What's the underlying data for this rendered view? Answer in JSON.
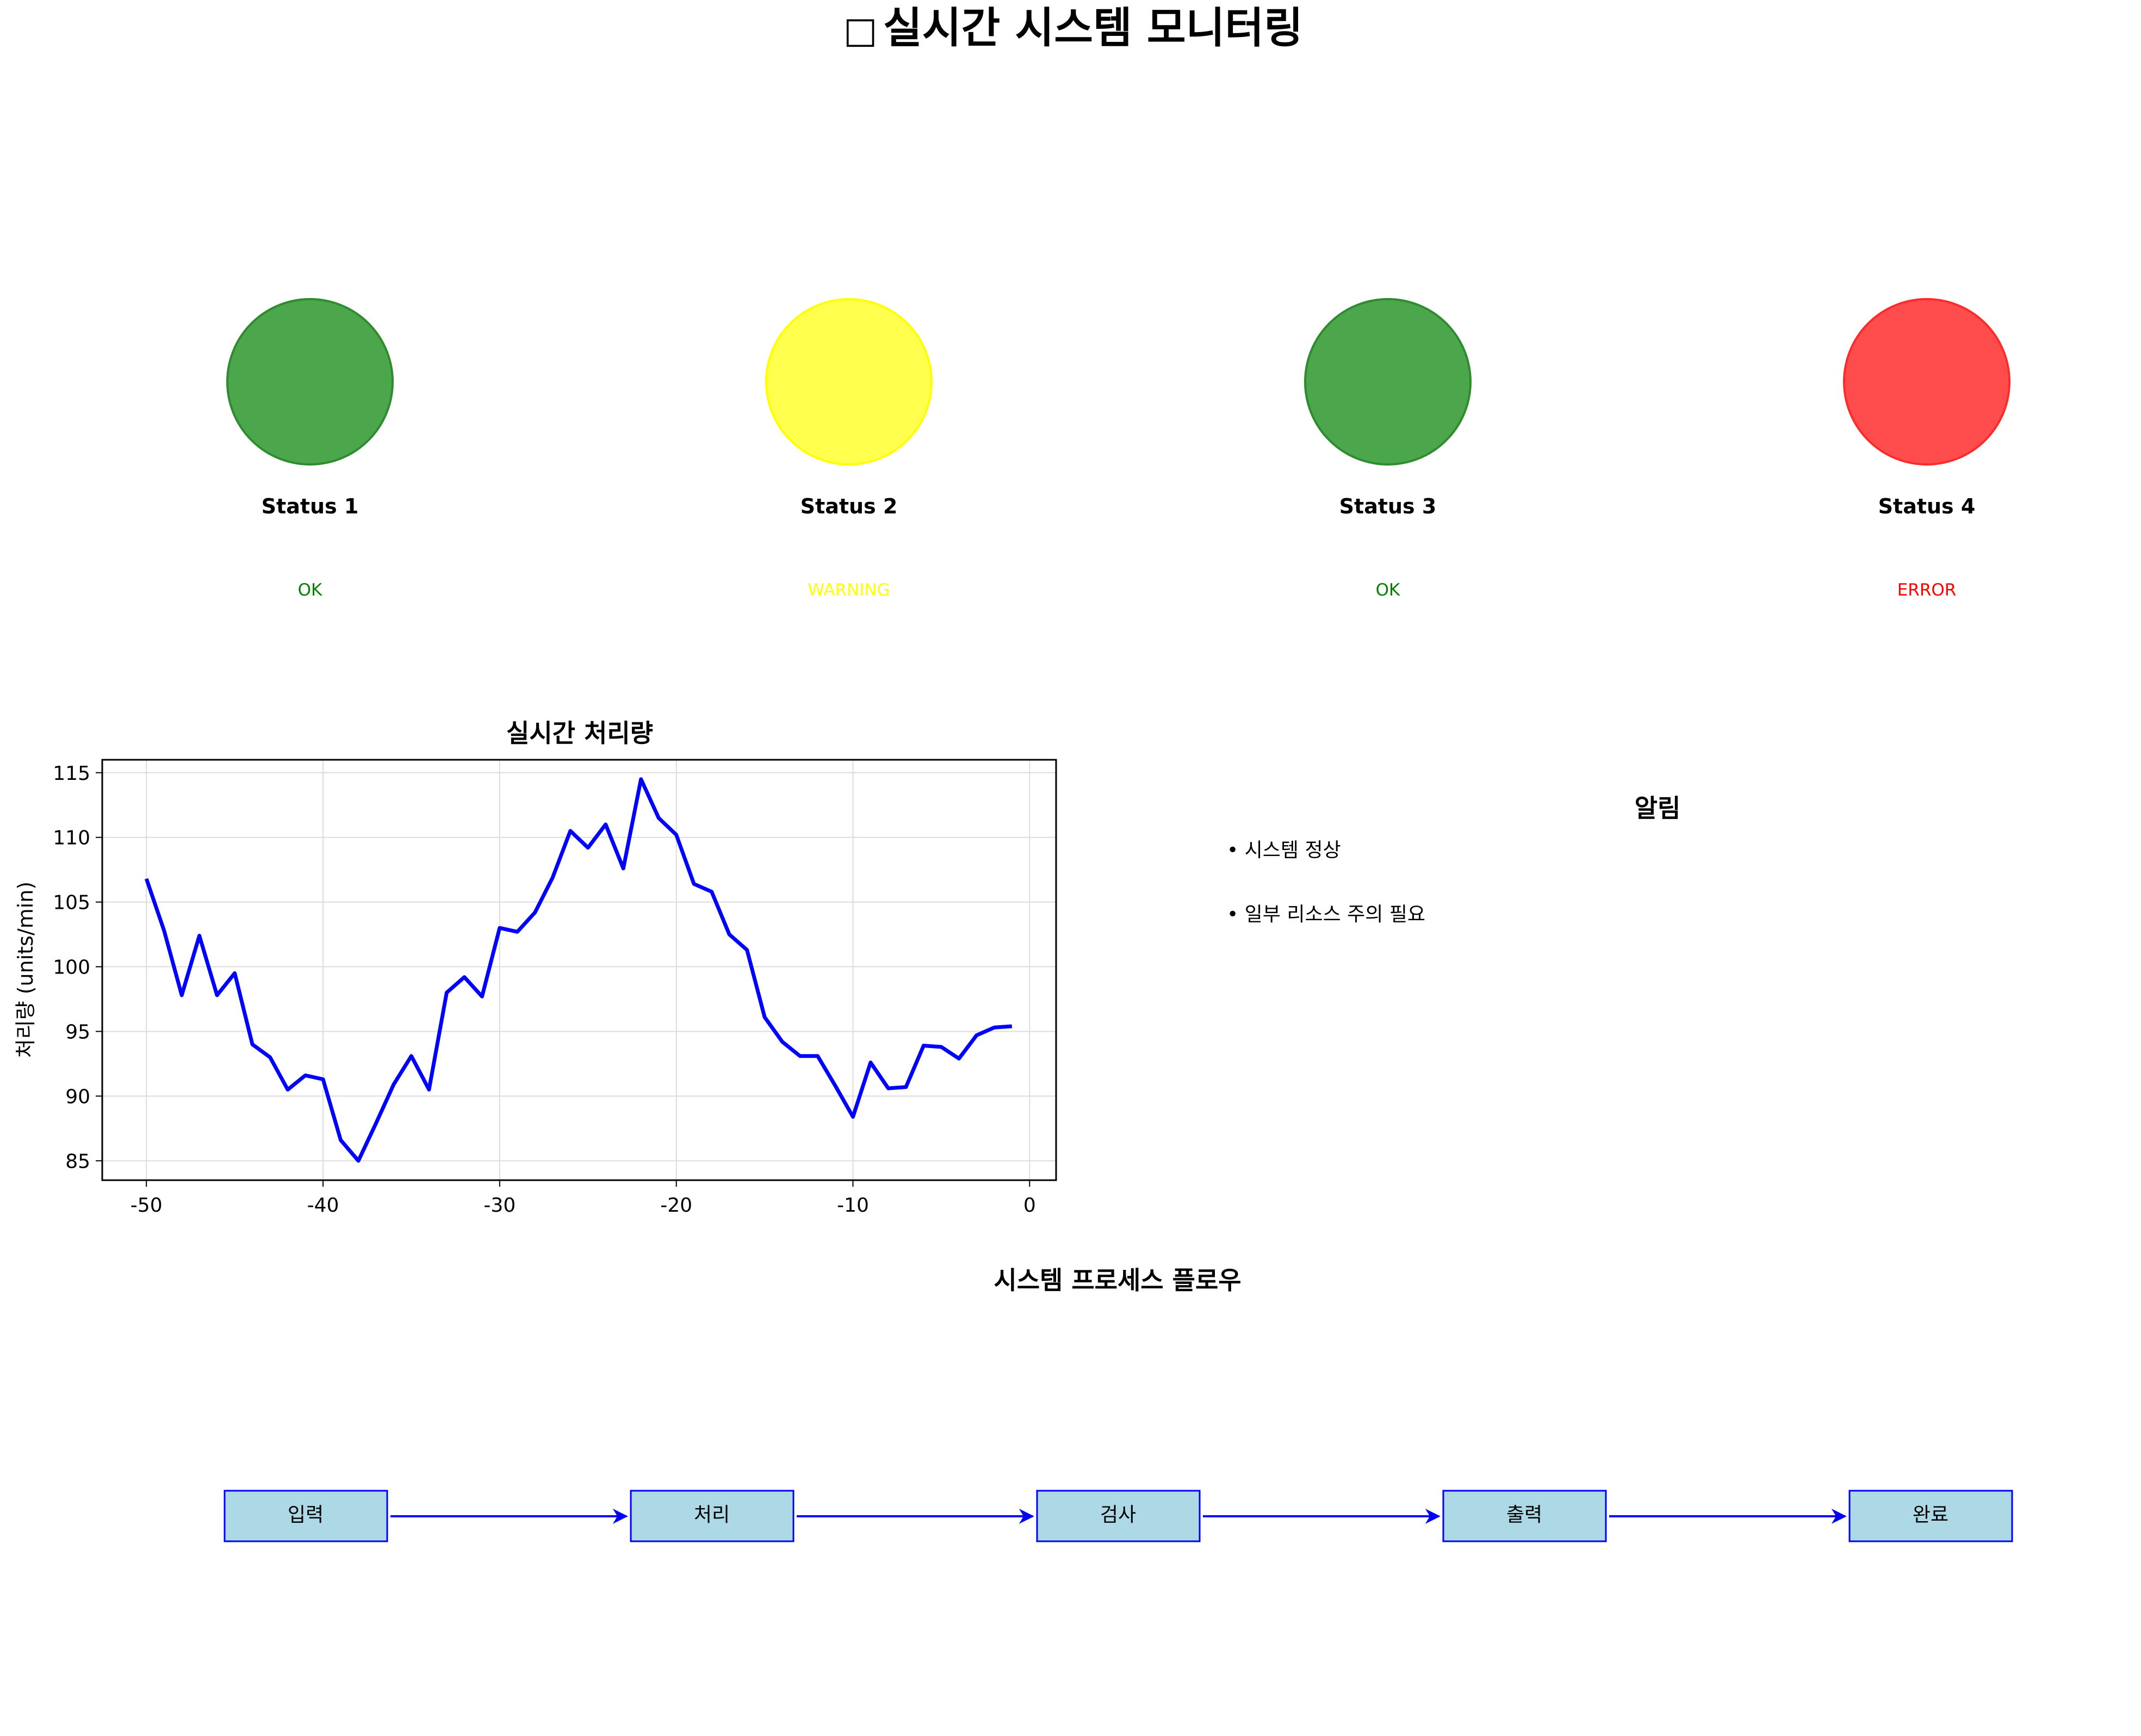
{
  "page": {
    "title_icon": "□",
    "title": "실시간 시스템 모니터링"
  },
  "status_panel": {
    "items": [
      {
        "label": "Status 1",
        "state": "OK",
        "color": "#4ca64c",
        "text_color": "#008000"
      },
      {
        "label": "Status 2",
        "state": "WARNING",
        "color": "#ffff4d",
        "text_color": "#ffff00"
      },
      {
        "label": "Status 3",
        "state": "OK",
        "color": "#4ca64c",
        "text_color": "#008000"
      },
      {
        "label": "Status 4",
        "state": "ERROR",
        "color": "#ff4d4d",
        "text_color": "#ff0000"
      }
    ]
  },
  "chart_data": {
    "type": "line",
    "title": "실시간 처리량",
    "xlabel": "",
    "ylabel": "처리량 (units/min)",
    "xlim": [
      -52.5,
      1.5
    ],
    "ylim": [
      83.5,
      116
    ],
    "xticks": [
      -50,
      -40,
      -30,
      -20,
      -10,
      0
    ],
    "yticks": [
      85,
      90,
      95,
      100,
      105,
      110,
      115
    ],
    "grid": true,
    "line_color": "#0000ff",
    "series": [
      {
        "x": [
          -50,
          -49,
          -48,
          -47,
          -46,
          -45,
          -44,
          -43,
          -42,
          -41,
          -40,
          -39,
          -38,
          -37,
          -36,
          -35,
          -34,
          -33,
          -32,
          -31,
          -30,
          -29,
          -28,
          -27,
          -26,
          -25,
          -24,
          -23,
          -22,
          -21,
          -20,
          -19,
          -18,
          -17,
          -16,
          -15,
          -14,
          -13,
          -12,
          -11,
          -10,
          -9,
          -8,
          -7,
          -6,
          -5,
          -4,
          -3,
          -2,
          -1
        ],
        "values": [
          106.8,
          102.8,
          97.8,
          102.4,
          97.8,
          99.5,
          94.0,
          93.0,
          90.5,
          91.6,
          91.3,
          86.6,
          85.0,
          87.9,
          90.9,
          93.1,
          90.5,
          98.0,
          99.2,
          97.7,
          103.0,
          102.7,
          104.2,
          106.9,
          110.5,
          109.2,
          111.0,
          107.6,
          114.5,
          111.5,
          110.2,
          106.4,
          105.8,
          102.5,
          101.3,
          96.1,
          94.2,
          93.1,
          93.1,
          90.8,
          88.4,
          92.6,
          90.6,
          90.7,
          93.9,
          93.8,
          92.9,
          94.7,
          95.3,
          95.4
        ]
      }
    ]
  },
  "alerts": {
    "title": "알림",
    "items": [
      "• 시스템 정상",
      "• 일부 리소스 주의 필요"
    ]
  },
  "flow": {
    "title": "시스템 프로세스 플로우",
    "steps": [
      "입력",
      "처리",
      "검사",
      "출력",
      "완료"
    ],
    "box_fill": "#add8e6",
    "border_color": "#0000ff"
  }
}
